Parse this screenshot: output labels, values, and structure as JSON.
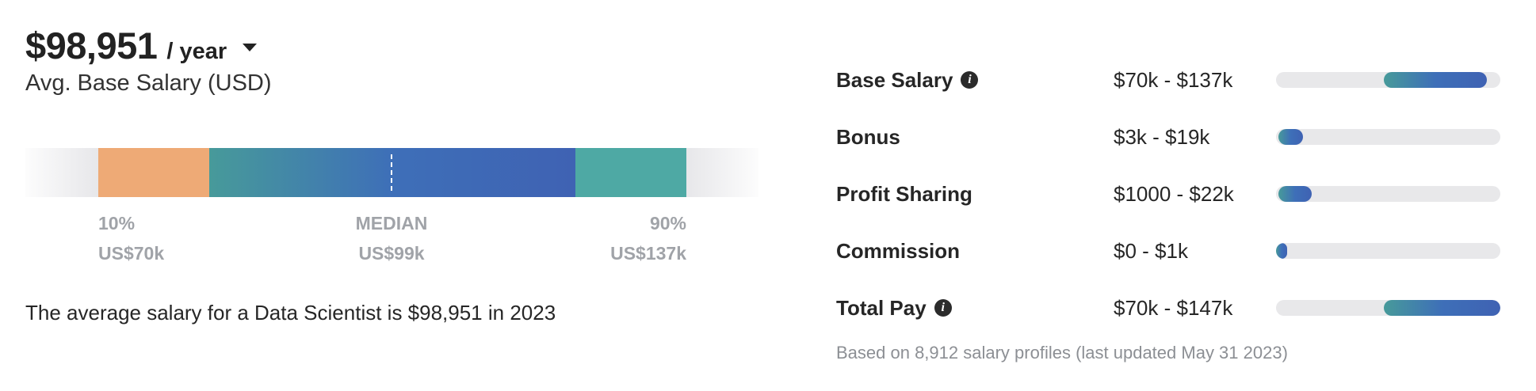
{
  "summary": {
    "amount": "$98,951",
    "period": "/ year",
    "subtitle": "Avg. Base Salary (USD)",
    "description": "The average salary for a Data Scientist is $98,951 in 2023"
  },
  "percentiles": {
    "low": {
      "label": "10%",
      "value": "US$70k"
    },
    "median": {
      "label": "MEDIAN",
      "value": "US$99k"
    },
    "high": {
      "label": "90%",
      "value": "US$137k"
    }
  },
  "breakdown": [
    {
      "label": "Base Salary",
      "range": "$70k - $137k",
      "info": true,
      "fill_start": 0.48,
      "fill_end": 0.94
    },
    {
      "label": "Bonus",
      "range": "$3k - $19k",
      "info": false,
      "fill_start": 0.01,
      "fill_end": 0.12
    },
    {
      "label": "Profit Sharing",
      "range": "$1000 - $22k",
      "info": false,
      "fill_start": 0.01,
      "fill_end": 0.16
    },
    {
      "label": "Commission",
      "range": "$0 - $1k",
      "info": false,
      "fill_start": 0.0,
      "fill_end": 0.05
    },
    {
      "label": "Total Pay",
      "range": "$70k - $147k",
      "info": true,
      "fill_start": 0.48,
      "fill_end": 1.0
    }
  ],
  "footnote": "Based on 8,912 salary profiles (last updated May 31 2023)",
  "colors": {
    "low_segment": "#eeaa76",
    "high_segment": "#4ea9a4",
    "gradient_start": "#479a9a",
    "gradient_end": "#3f62b3",
    "track": "#e8e8ea"
  },
  "icons": {
    "period_dropdown": "chevron-down-icon",
    "info": "info-icon"
  }
}
